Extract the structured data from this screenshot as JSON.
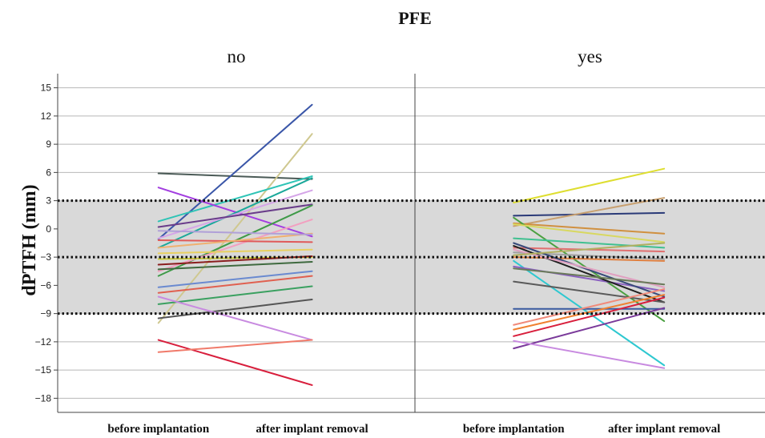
{
  "chart_data": {
    "type": "line",
    "title": "PFE",
    "ylabel": "dPTFH (mm)",
    "xlabel": "",
    "ylim": [
      -19.5,
      16.5
    ],
    "yticks": [
      15,
      12,
      9,
      6,
      3,
      0,
      -3,
      -6,
      -9,
      -12,
      -15,
      -18
    ],
    "y_tick_labels": [
      "15",
      "12",
      "9",
      "6",
      "3",
      "0",
      "−3",
      "−6",
      "−9",
      "−12",
      "−15",
      "−18"
    ],
    "categories": [
      "before implantation",
      "after implant removal"
    ],
    "grid": true,
    "shaded_band": [
      -9,
      3
    ],
    "reference_lines": [
      3,
      -3,
      -9
    ],
    "band_color": "#d9d9d9",
    "panels": [
      {
        "label": "no",
        "series": [
          {
            "values": [
              5.9,
              5.3
            ],
            "color": "#4a5a56"
          },
          {
            "values": [
              -1.1,
              13.2
            ],
            "color": "#3a56a8"
          },
          {
            "values": [
              -10.0,
              10.1
            ],
            "color": "#cfc890"
          },
          {
            "values": [
              0.8,
              5.6
            ],
            "color": "#2ec4b6"
          },
          {
            "values": [
              4.4,
              -0.8
            ],
            "color": "#a23de0"
          },
          {
            "values": [
              -2.0,
              5.4
            ],
            "color": "#1aa89a"
          },
          {
            "values": [
              -1.0,
              4.1
            ],
            "color": "#d5a5e8"
          },
          {
            "values": [
              0.2,
              2.6
            ],
            "color": "#6a3d8a"
          },
          {
            "values": [
              -5.0,
              2.5
            ],
            "color": "#3f9a48"
          },
          {
            "values": [
              -4.5,
              1.0
            ],
            "color": "#f2a0c0"
          },
          {
            "values": [
              -1.2,
              -1.4
            ],
            "color": "#e05a5a"
          },
          {
            "values": [
              -2.0,
              -0.5
            ],
            "color": "#f0b070"
          },
          {
            "values": [
              -3.2,
              -3.0
            ],
            "color": "#c8c83a"
          },
          {
            "values": [
              -3.8,
              -2.9
            ],
            "color": "#8a1e1e"
          },
          {
            "values": [
              -4.3,
              -3.5
            ],
            "color": "#3f6a3f"
          },
          {
            "values": [
              -6.2,
              -4.5
            ],
            "color": "#6a8ad0"
          },
          {
            "values": [
              -6.8,
              -5.0
            ],
            "color": "#e06050"
          },
          {
            "values": [
              -8.0,
              -6.1
            ],
            "color": "#3aa060"
          },
          {
            "values": [
              -9.5,
              -7.5
            ],
            "color": "#555555"
          },
          {
            "values": [
              -7.2,
              -11.8
            ],
            "color": "#c88ae0"
          },
          {
            "values": [
              -11.8,
              -16.6
            ],
            "color": "#d81e3c"
          },
          {
            "values": [
              -13.1,
              -11.8
            ],
            "color": "#f07a6a"
          },
          {
            "values": [
              -2.6,
              -2.2
            ],
            "color": "#e8d060"
          },
          {
            "values": [
              -0.2,
              -0.6
            ],
            "color": "#b0a0d8"
          }
        ]
      },
      {
        "label": "yes",
        "series": [
          {
            "values": [
              2.8,
              6.4
            ],
            "color": "#dede30"
          },
          {
            "values": [
              1.4,
              1.7
            ],
            "color": "#2a3a78"
          },
          {
            "values": [
              0.3,
              3.3
            ],
            "color": "#c8a070"
          },
          {
            "values": [
              0.6,
              -0.5
            ],
            "color": "#d09040"
          },
          {
            "values": [
              1.2,
              -9.8
            ],
            "color": "#4aa040"
          },
          {
            "values": [
              0.5,
              -1.4
            ],
            "color": "#d8d860"
          },
          {
            "values": [
              -1.0,
              -2.0
            ],
            "color": "#40c090"
          },
          {
            "values": [
              -2.0,
              -2.4
            ],
            "color": "#e07070"
          },
          {
            "values": [
              -2.5,
              -3.2
            ],
            "color": "#a0a0a0"
          },
          {
            "values": [
              -3.0,
              -3.4
            ],
            "color": "#e08040"
          },
          {
            "values": [
              -3.4,
              -14.5
            ],
            "color": "#2ec8d0"
          },
          {
            "values": [
              -4.0,
              -6.6
            ],
            "color": "#8a60c0"
          },
          {
            "values": [
              -1.5,
              -7.2
            ],
            "color": "#384a7a"
          },
          {
            "values": [
              -1.8,
              -7.8
            ],
            "color": "#202020"
          },
          {
            "values": [
              -2.2,
              -6.2
            ],
            "color": "#e0a0c0"
          },
          {
            "values": [
              -5.6,
              -7.8
            ],
            "color": "#5a5a5a"
          },
          {
            "values": [
              -8.5,
              -8.5
            ],
            "color": "#3a5aa0"
          },
          {
            "values": [
              -10.2,
              -6.4
            ],
            "color": "#f08a7a"
          },
          {
            "values": [
              -10.7,
              -7.0
            ],
            "color": "#f08030"
          },
          {
            "values": [
              -11.4,
              -7.3
            ],
            "color": "#d81e3c"
          },
          {
            "values": [
              -12.7,
              -8.4
            ],
            "color": "#7a3a9a"
          },
          {
            "values": [
              -11.9,
              -14.8
            ],
            "color": "#c88ae0"
          },
          {
            "values": [
              -4.2,
              -5.9
            ],
            "color": "#6a7a5a"
          },
          {
            "values": [
              -2.8,
              -1.5
            ],
            "color": "#b0b060"
          }
        ]
      }
    ]
  }
}
